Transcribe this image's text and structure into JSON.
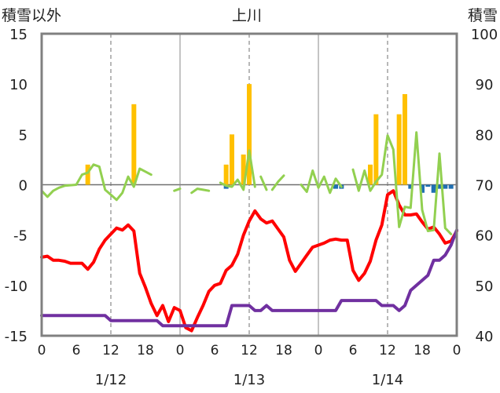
{
  "chart_data": {
    "type": "line",
    "title": "上川",
    "ylabel_left": "積雪以外",
    "ylabel_right": "積雪",
    "y_left": {
      "min": -15,
      "max": 15,
      "ticks": [
        15,
        10,
        5,
        0,
        -5,
        -10,
        -15
      ],
      "tick_labels": [
        "15",
        "10",
        "5",
        "0",
        "-5",
        "-10",
        "-15"
      ]
    },
    "y_right": {
      "min": 40,
      "max": 100,
      "ticks": [
        100,
        90,
        80,
        70,
        60,
        50,
        40
      ],
      "tick_labels": [
        "100",
        "90",
        "80",
        "70",
        "60",
        "50",
        "40"
      ]
    },
    "x": {
      "min": 0,
      "max": 72,
      "ticks": [
        0,
        6,
        12,
        18,
        24,
        30,
        36,
        42,
        48,
        54,
        60,
        66,
        72
      ],
      "tick_labels": [
        "0",
        "6",
        "12",
        "18",
        "0",
        "6",
        "12",
        "18",
        "0",
        "6",
        "12",
        "18",
        "0"
      ],
      "unit": "hour"
    },
    "date_labels": [
      {
        "text": "1/12",
        "x": 12
      },
      {
        "text": "1/13",
        "x": 36
      },
      {
        "text": "1/14",
        "x": 60
      }
    ],
    "grid": {
      "vertical_dashed_at": [
        12,
        36,
        60
      ],
      "vertical_solid_at": [
        24,
        48
      ]
    },
    "colors": {
      "snowfall": "#FFC000",
      "rain": "#1F6FB2",
      "temperature": "#FF0000",
      "humidity_like": "#92D050",
      "snow_depth": "#7030A0",
      "frame": "#808080"
    },
    "series": [
      {
        "type": "bar",
        "color": "#FFC000",
        "axis": "left",
        "points": [
          [
            8,
            2
          ],
          [
            16,
            8
          ],
          [
            32,
            2
          ],
          [
            33,
            5
          ],
          [
            35,
            3
          ],
          [
            36,
            10
          ],
          [
            57,
            2
          ],
          [
            58,
            7
          ],
          [
            62,
            7
          ],
          [
            63,
            9
          ]
        ]
      },
      {
        "type": "bar",
        "color": "#1F6FB2",
        "axis": "left",
        "points": [
          [
            32,
            -0.4
          ],
          [
            51,
            -0.4
          ],
          [
            52,
            -0.4
          ],
          [
            64,
            -0.4
          ],
          [
            66,
            -0.8
          ],
          [
            67,
            -0.2
          ],
          [
            68,
            -0.8
          ],
          [
            69,
            -0.4
          ],
          [
            70,
            -0.4
          ],
          [
            71,
            -0.4
          ]
        ]
      },
      {
        "type": "line",
        "color": "#FF0000",
        "axis": "left",
        "points": [
          [
            0,
            -7.2
          ],
          [
            1,
            -7.1
          ],
          [
            2,
            -7.5
          ],
          [
            3,
            -7.5
          ],
          [
            4,
            -7.6
          ],
          [
            5,
            -7.8
          ],
          [
            6,
            -7.8
          ],
          [
            7,
            -7.8
          ],
          [
            8,
            -8.4
          ],
          [
            9,
            -7.7
          ],
          [
            10,
            -6.4
          ],
          [
            11,
            -5.5
          ],
          [
            12,
            -4.9
          ],
          [
            13,
            -4.3
          ],
          [
            14,
            -4.5
          ],
          [
            15,
            -4.0
          ],
          [
            16,
            -4.6
          ],
          [
            17,
            -8.8
          ],
          [
            18,
            -10.2
          ],
          [
            19,
            -11.8
          ],
          [
            20,
            -13.0
          ],
          [
            21,
            -12.0
          ],
          [
            22,
            -13.6
          ],
          [
            23,
            -12.2
          ],
          [
            24,
            -12.5
          ],
          [
            25,
            -14.2
          ],
          [
            26,
            -14.5
          ],
          [
            27,
            -13.2
          ],
          [
            28,
            -12.0
          ],
          [
            29,
            -10.6
          ],
          [
            30,
            -10.0
          ],
          [
            31,
            -9.8
          ],
          [
            32,
            -8.5
          ],
          [
            33,
            -8.0
          ],
          [
            34,
            -6.9
          ],
          [
            35,
            -5.0
          ],
          [
            36,
            -3.6
          ],
          [
            37,
            -2.6
          ],
          [
            38,
            -3.4
          ],
          [
            39,
            -3.8
          ],
          [
            40,
            -3.6
          ],
          [
            41,
            -4.4
          ],
          [
            42,
            -5.2
          ],
          [
            43,
            -7.5
          ],
          [
            44,
            -8.6
          ],
          [
            45,
            -7.8
          ],
          [
            46,
            -7.0
          ],
          [
            47,
            -6.2
          ],
          [
            48,
            -6.0
          ],
          [
            49,
            -5.8
          ],
          [
            50,
            -5.5
          ],
          [
            51,
            -5.4
          ],
          [
            52,
            -5.5
          ],
          [
            53,
            -5.5
          ],
          [
            54,
            -8.5
          ],
          [
            55,
            -9.5
          ],
          [
            56,
            -8.8
          ],
          [
            57,
            -7.6
          ],
          [
            58,
            -5.5
          ],
          [
            59,
            -4.0
          ],
          [
            60,
            -1.0
          ],
          [
            61,
            -0.6
          ],
          [
            62,
            -2.0
          ],
          [
            63,
            -3.0
          ],
          [
            64,
            -3.0
          ],
          [
            65,
            -2.9
          ],
          [
            66,
            -3.7
          ],
          [
            67,
            -4.4
          ],
          [
            68,
            -4.2
          ],
          [
            69,
            -4.9
          ],
          [
            70,
            -5.8
          ],
          [
            71,
            -5.6
          ],
          [
            72,
            -4.6
          ]
        ]
      },
      {
        "type": "line",
        "color": "#92D050",
        "axis": "left",
        "points": [
          [
            0,
            -0.6
          ],
          [
            1,
            -1.2
          ],
          [
            2,
            -0.6
          ],
          [
            3,
            -0.3
          ],
          [
            4,
            -0.1
          ],
          [
            6,
            0.0
          ],
          [
            7,
            1.0
          ],
          [
            8,
            1.2
          ],
          [
            9,
            2.0
          ],
          [
            10,
            1.8
          ],
          [
            11,
            -0.5
          ],
          [
            12,
            -1.0
          ],
          [
            13,
            -1.5
          ],
          [
            14,
            -0.8
          ],
          [
            15,
            0.8
          ],
          [
            16,
            -0.2
          ],
          [
            17,
            1.6
          ],
          [
            18,
            1.3
          ],
          [
            19,
            1.0
          ],
          [
            null,
            null
          ],
          [
            23,
            -0.6
          ],
          [
            24,
            -0.4
          ],
          [
            null,
            null
          ],
          [
            26,
            -0.8
          ],
          [
            27,
            -0.4
          ],
          [
            28,
            -0.5
          ],
          [
            29,
            -0.6
          ],
          [
            null,
            null
          ],
          [
            31,
            0.2
          ],
          [
            32,
            -0.1
          ],
          [
            33,
            -0.2
          ],
          [
            34,
            0.5
          ],
          [
            35,
            -0.5
          ],
          [
            36,
            3.4
          ],
          [
            37,
            -0.2
          ],
          [
            null,
            null
          ],
          [
            38,
            0.8
          ],
          [
            39,
            -0.5
          ],
          [
            null,
            null
          ],
          [
            40,
            -0.5
          ],
          [
            41,
            0.3
          ],
          [
            42,
            0.9
          ],
          [
            null,
            null
          ],
          [
            45,
            0.0
          ],
          [
            46,
            -0.7
          ],
          [
            47,
            1.4
          ],
          [
            48,
            -0.3
          ],
          [
            49,
            0.8
          ],
          [
            50,
            -0.8
          ],
          [
            51,
            0.6
          ],
          [
            52,
            -0.2
          ],
          [
            null,
            null
          ],
          [
            54,
            1.5
          ],
          [
            55,
            -0.6
          ],
          [
            56,
            1.4
          ],
          [
            57,
            -0.6
          ],
          [
            58,
            0.3
          ],
          [
            59,
            1.0
          ],
          [
            60,
            4.9
          ],
          [
            61,
            3.5
          ],
          [
            62,
            -4.2
          ],
          [
            63,
            -2.2
          ],
          [
            64,
            -2.3
          ],
          [
            65,
            5.2
          ],
          [
            66,
            -2.5
          ],
          [
            67,
            -4.6
          ],
          [
            68,
            -4.5
          ],
          [
            69,
            3.1
          ],
          [
            70,
            -4.3
          ],
          [
            71,
            -4.9
          ]
        ]
      },
      {
        "type": "line",
        "color": "#7030A0",
        "axis": "right",
        "points": [
          [
            0,
            44.0
          ],
          [
            11,
            44.0
          ],
          [
            12,
            43.0
          ],
          [
            20,
            43.0
          ],
          [
            21,
            42.0
          ],
          [
            32,
            42.0
          ],
          [
            33,
            46.0
          ],
          [
            36,
            46.0
          ],
          [
            37,
            45.0
          ],
          [
            38,
            45.0
          ],
          [
            39,
            46.0
          ],
          [
            40,
            45.0
          ],
          [
            48,
            45.0
          ],
          [
            50,
            45.0
          ],
          [
            51,
            45.0
          ],
          [
            52,
            47.0
          ],
          [
            58,
            47.0
          ],
          [
            59,
            46.0
          ],
          [
            61,
            46.0
          ],
          [
            62,
            45.0
          ],
          [
            63,
            46.0
          ],
          [
            64,
            49.0
          ],
          [
            65,
            50.0
          ],
          [
            66,
            51.0
          ],
          [
            67,
            52.0
          ],
          [
            68,
            55.0
          ],
          [
            69,
            55.0
          ],
          [
            70,
            56.0
          ],
          [
            71,
            58.0
          ],
          [
            72,
            61.0
          ]
        ]
      }
    ]
  }
}
